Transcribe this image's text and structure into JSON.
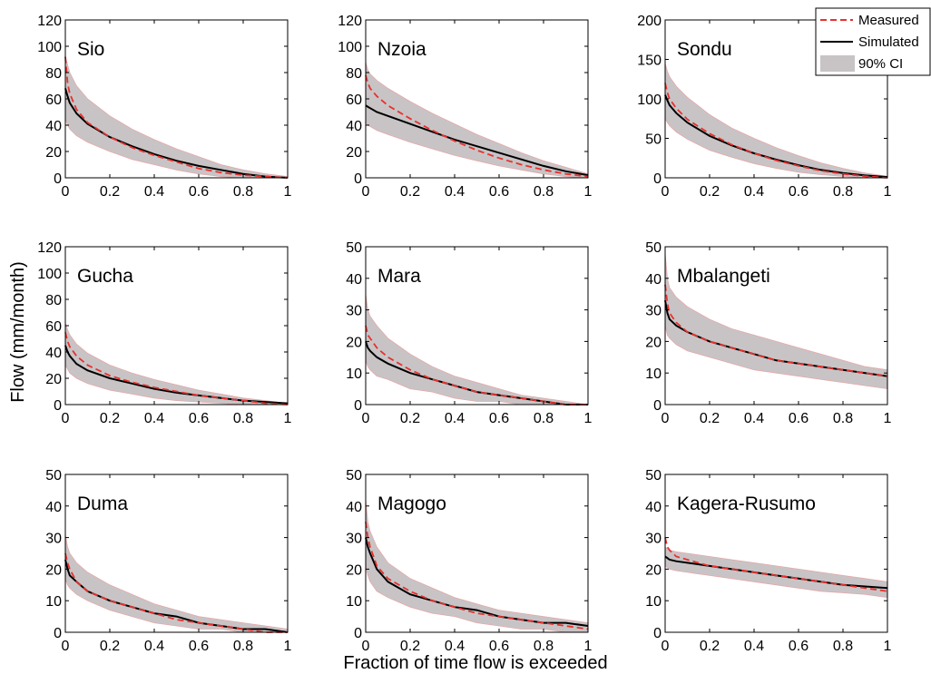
{
  "figure": {
    "ylabel": "Flow (mm/month)",
    "xlabel": "Fraction of time flow is exceeded"
  },
  "legend": {
    "placement": "top-right",
    "items": [
      {
        "label": "Measured",
        "style": "dashed",
        "color": "#e8312e"
      },
      {
        "label": "Simulated",
        "style": "solid",
        "color": "#000000"
      },
      {
        "label": "90% CI",
        "style": "band",
        "color": "#c8c4c6"
      }
    ]
  },
  "colors": {
    "measured": "#e8312e",
    "simulated": "#000000",
    "ci_band": "#c8c4c6",
    "ci_edge": "#e6a8aa"
  },
  "chart_data": [
    {
      "type": "line",
      "title": "Sio",
      "xlim": [
        0,
        1
      ],
      "ylim": [
        0,
        120
      ],
      "xticks": [
        "0",
        "0.2",
        "0.4",
        "0.6",
        "0.8",
        "1"
      ],
      "yticks": [
        "0",
        "20",
        "40",
        "60",
        "80",
        "100",
        "120"
      ],
      "x": [
        0,
        0.01,
        0.02,
        0.05,
        0.1,
        0.2,
        0.3,
        0.4,
        0.5,
        0.6,
        0.7,
        0.8,
        0.9,
        1.0
      ],
      "series": [
        {
          "name": "Measured",
          "values": [
            92,
            72,
            64,
            52,
            42,
            31,
            23,
            17,
            12,
            7,
            4,
            2,
            1,
            0
          ]
        },
        {
          "name": "Simulated",
          "values": [
            68,
            62,
            57,
            49,
            41,
            31,
            24,
            18,
            13,
            9,
            6,
            3,
            1,
            0
          ]
        },
        {
          "name": "90% CI upper",
          "values": [
            92,
            86,
            80,
            70,
            60,
            47,
            37,
            29,
            22,
            16,
            10,
            6,
            3,
            1
          ]
        },
        {
          "name": "90% CI lower",
          "values": [
            45,
            40,
            37,
            32,
            27,
            20,
            14,
            10,
            6,
            3,
            1,
            0,
            0,
            0
          ]
        }
      ]
    },
    {
      "type": "line",
      "title": "Nzoia",
      "xlim": [
        0,
        1
      ],
      "ylim": [
        0,
        120
      ],
      "xticks": [
        "0",
        "0.2",
        "0.4",
        "0.6",
        "0.8",
        "1"
      ],
      "yticks": [
        "0",
        "20",
        "40",
        "60",
        "80",
        "100",
        "120"
      ],
      "x": [
        0,
        0.01,
        0.02,
        0.05,
        0.1,
        0.2,
        0.3,
        0.4,
        0.5,
        0.6,
        0.7,
        0.8,
        0.9,
        1.0
      ],
      "series": [
        {
          "name": "Measured",
          "values": [
            78,
            72,
            68,
            62,
            55,
            45,
            36,
            28,
            21,
            15,
            10,
            6,
            3,
            1
          ]
        },
        {
          "name": "Simulated",
          "values": [
            55,
            54,
            53,
            50,
            47,
            41,
            35,
            29,
            24,
            19,
            14,
            9,
            5,
            2
          ]
        },
        {
          "name": "90% CI upper",
          "values": [
            88,
            82,
            79,
            74,
            68,
            58,
            49,
            41,
            33,
            26,
            19,
            13,
            8,
            3
          ]
        },
        {
          "name": "90% CI lower",
          "values": [
            42,
            40,
            39,
            36,
            33,
            27,
            22,
            17,
            13,
            9,
            6,
            3,
            1,
            0
          ]
        }
      ]
    },
    {
      "type": "line",
      "title": "Sondu",
      "xlim": [
        0,
        1
      ],
      "ylim": [
        0,
        200
      ],
      "xticks": [
        "0",
        "0.2",
        "0.4",
        "0.6",
        "0.8",
        "1"
      ],
      "yticks": [
        "0",
        "50",
        "100",
        "150",
        "200"
      ],
      "x": [
        0,
        0.01,
        0.02,
        0.05,
        0.1,
        0.2,
        0.3,
        0.4,
        0.5,
        0.6,
        0.7,
        0.8,
        0.9,
        1.0
      ],
      "series": [
        {
          "name": "Measured",
          "values": [
            120,
            108,
            100,
            88,
            74,
            56,
            42,
            31,
            22,
            15,
            9,
            5,
            2,
            0
          ]
        },
        {
          "name": "Simulated",
          "values": [
            105,
            98,
            92,
            82,
            70,
            53,
            41,
            31,
            23,
            16,
            10,
            6,
            3,
            1
          ]
        },
        {
          "name": "90% CI upper",
          "values": [
            145,
            135,
            128,
            116,
            102,
            80,
            63,
            50,
            38,
            28,
            19,
            12,
            6,
            2
          ]
        },
        {
          "name": "90% CI lower",
          "values": [
            75,
            70,
            66,
            58,
            49,
            35,
            26,
            18,
            12,
            7,
            4,
            2,
            0,
            0
          ]
        }
      ]
    },
    {
      "type": "line",
      "title": "Gucha",
      "xlim": [
        0,
        1
      ],
      "ylim": [
        0,
        120
      ],
      "xticks": [
        "0",
        "0.2",
        "0.4",
        "0.6",
        "0.8",
        "1"
      ],
      "yticks": [
        "0",
        "20",
        "40",
        "60",
        "80",
        "100",
        "120"
      ],
      "x": [
        0,
        0.01,
        0.02,
        0.05,
        0.1,
        0.2,
        0.3,
        0.4,
        0.5,
        0.6,
        0.7,
        0.8,
        0.9,
        1.0
      ],
      "series": [
        {
          "name": "Measured",
          "values": [
            55,
            48,
            44,
            37,
            30,
            22,
            17,
            13,
            10,
            7,
            5,
            3,
            1,
            0
          ]
        },
        {
          "name": "Simulated",
          "values": [
            45,
            40,
            37,
            31,
            26,
            20,
            16,
            12,
            9,
            7,
            5,
            3,
            2,
            1
          ]
        },
        {
          "name": "90% CI upper",
          "values": [
            62,
            57,
            53,
            46,
            39,
            30,
            24,
            19,
            15,
            11,
            8,
            5,
            3,
            1
          ]
        },
        {
          "name": "90% CI lower",
          "values": [
            30,
            27,
            24,
            20,
            16,
            11,
            8,
            5,
            3,
            2,
            1,
            0,
            0,
            0
          ]
        }
      ]
    },
    {
      "type": "line",
      "title": "Mara",
      "xlim": [
        0,
        1
      ],
      "ylim": [
        0,
        50
      ],
      "xticks": [
        "0",
        "0.2",
        "0.4",
        "0.6",
        "0.8",
        "1"
      ],
      "yticks": [
        "0",
        "10",
        "20",
        "30",
        "40",
        "50"
      ],
      "x": [
        0,
        0.01,
        0.02,
        0.05,
        0.1,
        0.2,
        0.3,
        0.4,
        0.5,
        0.6,
        0.7,
        0.8,
        0.9,
        1.0
      ],
      "series": [
        {
          "name": "Measured",
          "values": [
            25,
            22,
            21,
            18,
            15,
            11,
            8,
            6,
            4,
            3,
            2,
            1,
            0,
            0
          ]
        },
        {
          "name": "Simulated",
          "values": [
            20,
            18,
            17,
            15,
            13,
            10,
            8,
            6,
            4,
            3,
            2,
            1,
            0,
            0
          ]
        },
        {
          "name": "90% CI upper",
          "values": [
            35,
            30,
            28,
            25,
            21,
            16,
            12,
            9,
            7,
            5,
            3,
            2,
            1,
            0
          ]
        },
        {
          "name": "90% CI lower",
          "values": [
            14,
            12,
            11,
            9,
            8,
            5,
            4,
            2,
            1,
            1,
            0,
            0,
            0,
            0
          ]
        }
      ]
    },
    {
      "type": "line",
      "title": "Mbalangeti",
      "xlim": [
        0,
        1
      ],
      "ylim": [
        0,
        50
      ],
      "xticks": [
        "0",
        "0.2",
        "0.4",
        "0.6",
        "0.8",
        "1"
      ],
      "yticks": [
        "0",
        "10",
        "20",
        "30",
        "40",
        "50"
      ],
      "x": [
        0,
        0.01,
        0.02,
        0.05,
        0.1,
        0.2,
        0.3,
        0.4,
        0.5,
        0.6,
        0.7,
        0.8,
        0.9,
        1.0
      ],
      "series": [
        {
          "name": "Measured",
          "values": [
            38,
            32,
            29,
            26,
            23,
            20,
            18,
            16,
            14,
            13,
            12,
            11,
            10,
            9
          ]
        },
        {
          "name": "Simulated",
          "values": [
            33,
            29,
            27,
            25,
            23,
            20,
            18,
            16,
            14,
            13,
            12,
            11,
            10,
            9
          ]
        },
        {
          "name": "90% CI upper",
          "values": [
            48,
            40,
            37,
            34,
            31,
            27,
            24,
            22,
            20,
            18,
            16,
            14,
            12,
            11
          ]
        },
        {
          "name": "90% CI lower",
          "values": [
            25,
            22,
            21,
            19,
            17,
            15,
            13,
            11,
            10,
            9,
            8,
            7,
            6,
            5
          ]
        }
      ]
    },
    {
      "type": "line",
      "title": "Duma",
      "xlim": [
        0,
        1
      ],
      "ylim": [
        0,
        50
      ],
      "xticks": [
        "0",
        "0.2",
        "0.4",
        "0.6",
        "0.8",
        "1"
      ],
      "yticks": [
        "0",
        "10",
        "20",
        "30",
        "40",
        "50"
      ],
      "x": [
        0,
        0.01,
        0.02,
        0.05,
        0.1,
        0.2,
        0.3,
        0.4,
        0.5,
        0.6,
        0.7,
        0.8,
        0.9,
        1.0
      ],
      "series": [
        {
          "name": "Measured",
          "values": [
            25,
            22,
            20,
            16,
            13,
            10,
            8,
            6,
            4,
            3,
            2,
            1,
            0,
            0
          ]
        },
        {
          "name": "Simulated",
          "values": [
            23,
            20,
            18,
            16,
            13,
            10,
            8,
            6,
            5,
            3,
            2,
            1,
            1,
            0
          ]
        },
        {
          "name": "90% CI upper",
          "values": [
            31,
            27,
            25,
            22,
            19,
            15,
            12,
            9,
            7,
            5,
            4,
            3,
            2,
            1
          ]
        },
        {
          "name": "90% CI lower",
          "values": [
            17,
            15,
            14,
            12,
            10,
            7,
            5,
            3,
            2,
            1,
            1,
            0,
            0,
            0
          ]
        }
      ]
    },
    {
      "type": "line",
      "title": "Magogo",
      "xlim": [
        0,
        1
      ],
      "ylim": [
        0,
        50
      ],
      "xticks": [
        "0",
        "0.2",
        "0.4",
        "0.6",
        "0.8",
        "1"
      ],
      "yticks": [
        "0",
        "10",
        "20",
        "30",
        "40",
        "50"
      ],
      "x": [
        0,
        0.01,
        0.02,
        0.05,
        0.1,
        0.2,
        0.3,
        0.4,
        0.5,
        0.6,
        0.7,
        0.8,
        0.9,
        1.0
      ],
      "series": [
        {
          "name": "Measured",
          "values": [
            35,
            30,
            27,
            21,
            17,
            13,
            10,
            8,
            6,
            5,
            4,
            3,
            2,
            1
          ]
        },
        {
          "name": "Simulated",
          "values": [
            30,
            27,
            25,
            20,
            16,
            12,
            10,
            8,
            7,
            5,
            4,
            3,
            3,
            2
          ]
        },
        {
          "name": "90% CI upper",
          "values": [
            42,
            35,
            32,
            27,
            22,
            17,
            14,
            11,
            9,
            7,
            6,
            5,
            4,
            3
          ]
        },
        {
          "name": "90% CI lower",
          "values": [
            21,
            18,
            16,
            13,
            11,
            8,
            6,
            5,
            3,
            2,
            1,
            1,
            0,
            0
          ]
        }
      ]
    },
    {
      "type": "line",
      "title": "Kagera-Rusumo",
      "xlim": [
        0,
        1
      ],
      "ylim": [
        0,
        50
      ],
      "xticks": [
        "0",
        "0.2",
        "0.4",
        "0.6",
        "0.8",
        "1"
      ],
      "yticks": [
        "0",
        "10",
        "20",
        "30",
        "40",
        "50"
      ],
      "x": [
        0,
        0.01,
        0.02,
        0.05,
        0.1,
        0.2,
        0.3,
        0.4,
        0.5,
        0.6,
        0.7,
        0.8,
        0.9,
        1.0
      ],
      "series": [
        {
          "name": "Measured",
          "values": [
            30,
            27,
            26,
            24,
            23,
            21,
            20,
            19,
            18,
            17,
            16,
            15,
            14,
            13
          ]
        },
        {
          "name": "Simulated",
          "values": [
            24,
            23.5,
            23,
            22.5,
            22,
            21,
            20,
            19,
            18,
            17,
            16,
            15,
            14.5,
            14
          ]
        },
        {
          "name": "90% CI upper",
          "values": [
            27,
            26.5,
            26,
            25.5,
            25,
            24,
            23,
            22,
            21,
            20,
            19,
            18,
            17,
            16
          ]
        },
        {
          "name": "90% CI lower",
          "values": [
            21,
            20.5,
            20,
            19.5,
            19,
            18,
            17,
            16,
            15,
            14,
            13,
            12.5,
            12,
            11
          ]
        }
      ]
    }
  ]
}
